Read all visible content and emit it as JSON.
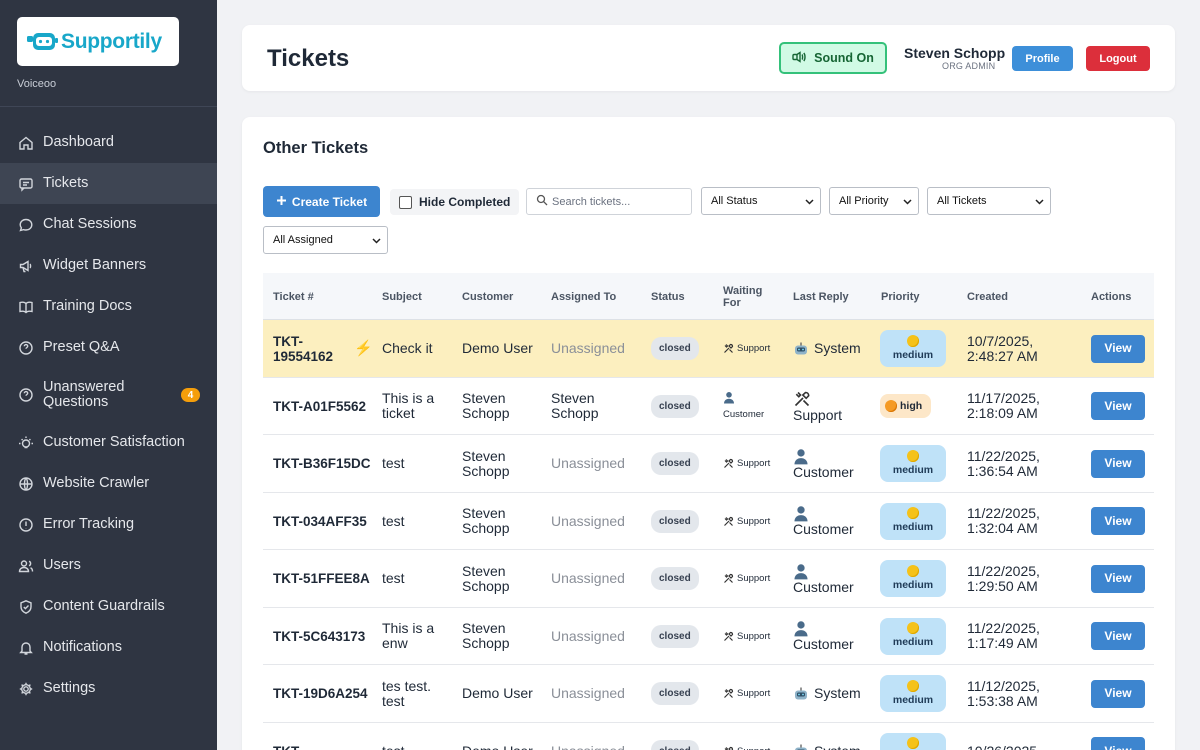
{
  "brand": {
    "name": "Supportily",
    "org": "Voiceoo"
  },
  "sidebar": {
    "items": [
      {
        "label": "Dashboard",
        "icon": "home-icon"
      },
      {
        "label": "Tickets",
        "icon": "ticket-icon",
        "active": true
      },
      {
        "label": "Chat Sessions",
        "icon": "chat-icon"
      },
      {
        "label": "Widget Banners",
        "icon": "megaphone-icon"
      },
      {
        "label": "Training Docs",
        "icon": "book-icon"
      },
      {
        "label": "Preset Q&A",
        "icon": "help-icon"
      },
      {
        "label": "Unanswered Questions",
        "icon": "question-icon",
        "badge": "4"
      },
      {
        "label": "Customer Satisfaction",
        "icon": "bulb-icon"
      },
      {
        "label": "Website Crawler",
        "icon": "globe-icon"
      },
      {
        "label": "Error Tracking",
        "icon": "alert-icon"
      },
      {
        "label": "Users",
        "icon": "users-icon"
      },
      {
        "label": "Content Guardrails",
        "icon": "shield-icon"
      },
      {
        "label": "Notifications",
        "icon": "bell-icon"
      },
      {
        "label": "Settings",
        "icon": "gear-icon"
      }
    ]
  },
  "header": {
    "title": "Tickets",
    "sound_label": "Sound On",
    "user_name": "Steven Schopp",
    "user_role": "ORG ADMIN",
    "profile_label": "Profile",
    "logout_label": "Logout"
  },
  "main": {
    "section_title": "Other Tickets",
    "create_label": "Create Ticket",
    "hide_completed_label": "Hide Completed",
    "search_placeholder": "Search tickets...",
    "filters": {
      "status": "All Status",
      "priority": "All Priority",
      "tickets": "All Tickets",
      "assigned": "All Assigned"
    }
  },
  "table": {
    "headers": {
      "id": "Ticket #",
      "subject": "Subject",
      "customer": "Customer",
      "assigned": "Assigned To",
      "status": "Status",
      "waiting": "Waiting For",
      "reply": "Last Reply",
      "priority": "Priority",
      "created": "Created",
      "actions": "Actions"
    },
    "view_label": "View",
    "rows": [
      {
        "id": "TKT-19554162",
        "urgent": true,
        "subject": "Check it",
        "customer": "Demo User",
        "assigned": "Unassigned",
        "status": "closed",
        "waiting": "Support",
        "reply": "System",
        "priority": "medium",
        "created": "10/7/2025, 2:48:27 AM"
      },
      {
        "id": "TKT-A01F5562",
        "urgent": false,
        "subject": "This is a ticket",
        "customer": "Steven Schopp",
        "assigned": "Steven Schopp",
        "status": "closed",
        "waiting": "Customer",
        "reply": "Support",
        "priority": "high",
        "created": "11/17/2025, 2:18:09 AM"
      },
      {
        "id": "TKT-B36F15DC",
        "urgent": false,
        "subject": "test",
        "customer": "Steven Schopp",
        "assigned": "Unassigned",
        "status": "closed",
        "waiting": "Support",
        "reply": "Customer",
        "priority": "medium",
        "created": "11/22/2025, 1:36:54 AM"
      },
      {
        "id": "TKT-034AFF35",
        "urgent": false,
        "subject": "test",
        "customer": "Steven Schopp",
        "assigned": "Unassigned",
        "status": "closed",
        "waiting": "Support",
        "reply": "Customer",
        "priority": "medium",
        "created": "11/22/2025, 1:32:04 AM"
      },
      {
        "id": "TKT-51FFEE8A",
        "urgent": false,
        "subject": "test",
        "customer": "Steven Schopp",
        "assigned": "Unassigned",
        "status": "closed",
        "waiting": "Support",
        "reply": "Customer",
        "priority": "medium",
        "created": "11/22/2025, 1:29:50 AM"
      },
      {
        "id": "TKT-5C643173",
        "urgent": false,
        "subject": "This is a enw",
        "customer": "Steven Schopp",
        "assigned": "Unassigned",
        "status": "closed",
        "waiting": "Support",
        "reply": "Customer",
        "priority": "medium",
        "created": "11/22/2025, 1:17:49 AM"
      },
      {
        "id": "TKT-19D6A254",
        "urgent": false,
        "subject": "tes test. test",
        "customer": "Demo User",
        "assigned": "Unassigned",
        "status": "closed",
        "waiting": "Support",
        "reply": "System",
        "priority": "medium",
        "created": "11/12/2025, 1:53:38 AM"
      },
      {
        "id": "TKT-",
        "urgent": false,
        "subject": "test",
        "customer": "Demo User",
        "assigned": "Unassigned",
        "status": "closed",
        "waiting": "Support",
        "reply": "System",
        "priority": "medium",
        "created": "10/26/2025,"
      }
    ]
  }
}
